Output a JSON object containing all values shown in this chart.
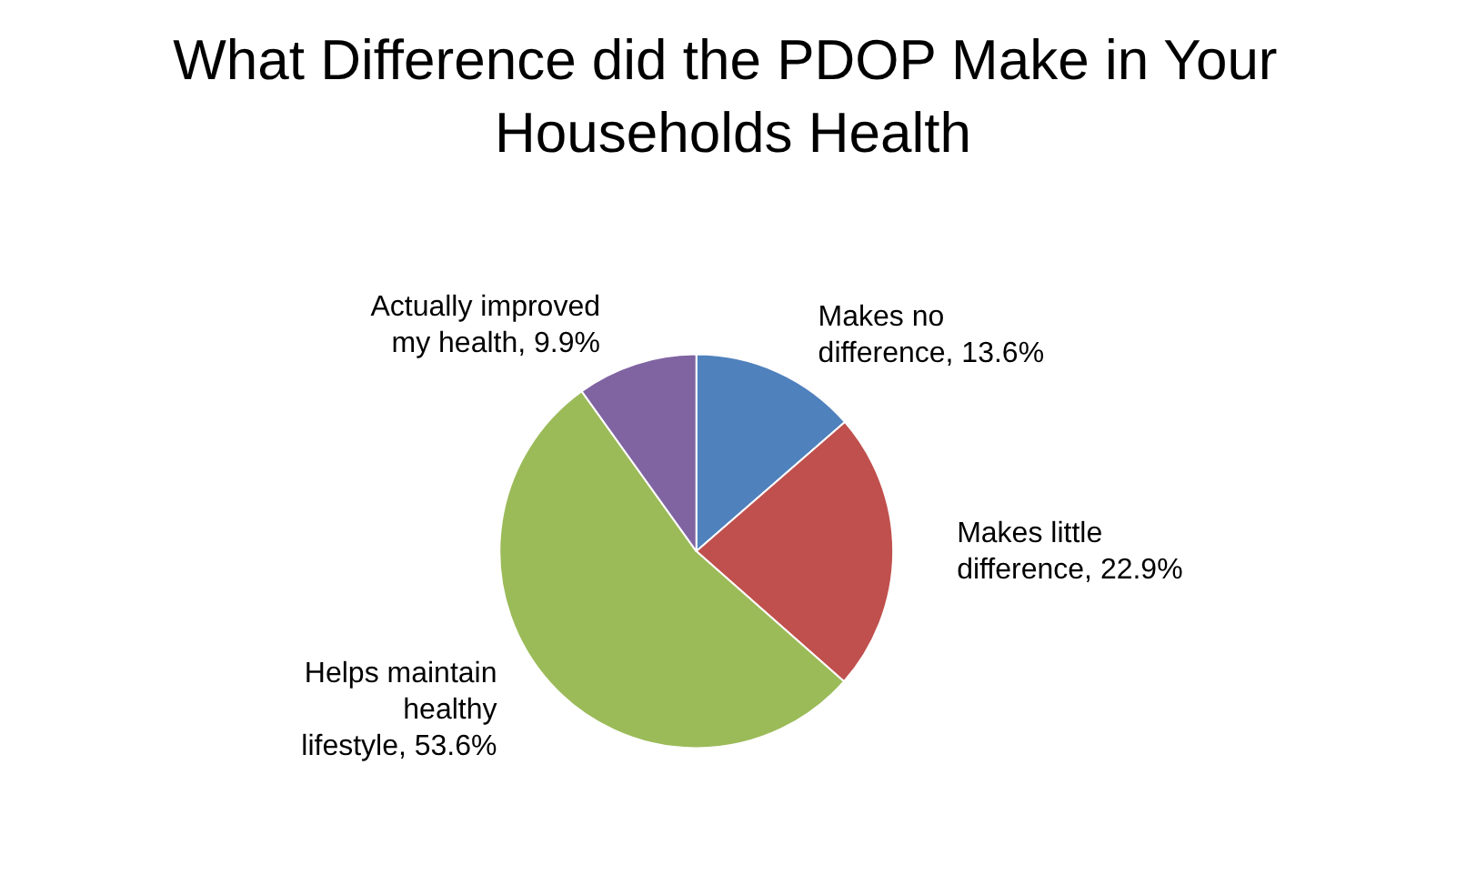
{
  "chart_data": {
    "type": "pie",
    "title": "What Difference did the PDOP Make in Your Households Health",
    "categories": [
      "Makes no difference",
      "Makes little difference",
      "Helps maintain healthy lifestyle",
      "Actually improved my health"
    ],
    "values": [
      13.6,
      22.9,
      53.6,
      9.9
    ],
    "value_labels": [
      "13.6%",
      "22.9%",
      "53.6%",
      "9.9%"
    ],
    "colors": [
      "#4f81bd",
      "#c0504d",
      "#9bbb59",
      "#8064a2"
    ],
    "legend": false
  }
}
